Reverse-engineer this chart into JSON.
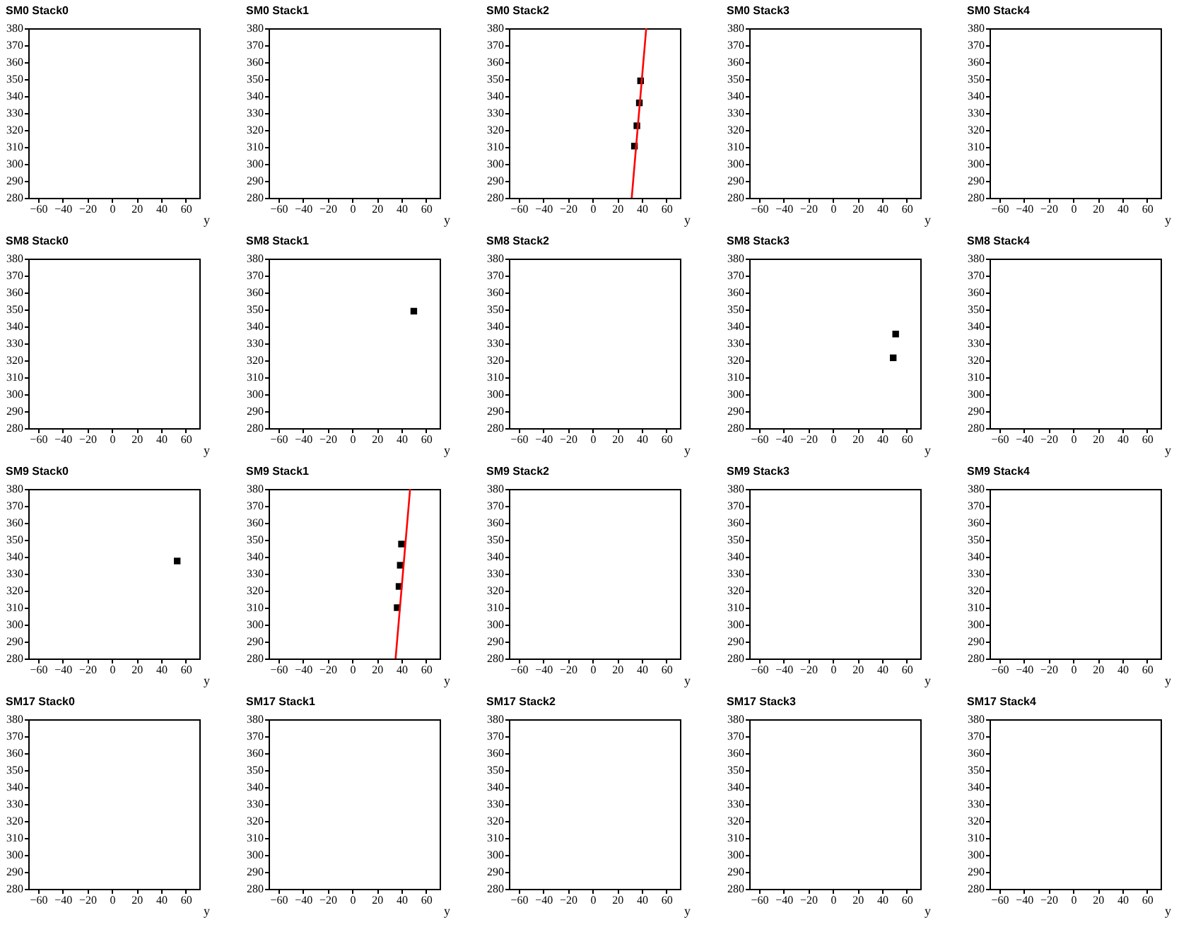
{
  "chart_data": [
    {
      "type": "scatter",
      "title": "SM0 Stack0",
      "xlabel": "y",
      "xlim": [
        -68,
        71
      ],
      "xticks": [
        -60,
        -40,
        -20,
        0,
        20,
        40,
        60
      ],
      "ylim": [
        280,
        380
      ],
      "yticks": [
        280,
        290,
        300,
        310,
        320,
        330,
        340,
        350,
        360,
        370,
        380
      ]
    },
    {
      "type": "scatter",
      "title": "SM0 Stack1",
      "xlabel": "y",
      "xlim": [
        -68,
        71
      ],
      "xticks": [
        -60,
        -40,
        -20,
        0,
        20,
        40,
        60
      ],
      "ylim": [
        280,
        380
      ],
      "yticks": [
        280,
        290,
        300,
        310,
        320,
        330,
        340,
        350,
        360,
        370,
        380
      ]
    },
    {
      "type": "scatter",
      "title": "SM0 Stack2",
      "xlabel": "y",
      "xlim": [
        -68,
        71
      ],
      "xticks": [
        -60,
        -40,
        -20,
        0,
        20,
        40,
        60
      ],
      "ylim": [
        280,
        380
      ],
      "yticks": [
        280,
        290,
        300,
        310,
        320,
        330,
        340,
        350,
        360,
        370,
        380
      ],
      "series": [
        {
          "color": "#000000",
          "marker": "square",
          "x": [
            39,
            38,
            36,
            34
          ],
          "values": [
            349,
            336,
            322.5,
            310.5
          ]
        },
        {
          "type": "line",
          "color": "#ff0000",
          "x": [
            31.8,
            43.6
          ],
          "values": [
            280,
            380
          ]
        }
      ]
    },
    {
      "type": "scatter",
      "title": "SM0 Stack3",
      "xlabel": "y",
      "xlim": [
        -68,
        71
      ],
      "xticks": [
        -60,
        -40,
        -20,
        0,
        20,
        40,
        60
      ],
      "ylim": [
        280,
        380
      ],
      "yticks": [
        280,
        290,
        300,
        310,
        320,
        330,
        340,
        350,
        360,
        370,
        380
      ]
    },
    {
      "type": "scatter",
      "title": "SM0 Stack4",
      "xlabel": "y",
      "xlim": [
        -68,
        71
      ],
      "xticks": [
        -60,
        -40,
        -20,
        0,
        20,
        40,
        60
      ],
      "ylim": [
        280,
        380
      ],
      "yticks": [
        280,
        290,
        300,
        310,
        320,
        330,
        340,
        350,
        360,
        370,
        380
      ]
    },
    {
      "type": "scatter",
      "title": "SM8 Stack0",
      "xlabel": "y",
      "xlim": [
        -68,
        71
      ],
      "xticks": [
        -60,
        -40,
        -20,
        0,
        20,
        40,
        60
      ],
      "ylim": [
        280,
        380
      ],
      "yticks": [
        280,
        290,
        300,
        310,
        320,
        330,
        340,
        350,
        360,
        370,
        380
      ]
    },
    {
      "type": "scatter",
      "title": "SM8 Stack1",
      "xlabel": "y",
      "xlim": [
        -68,
        71
      ],
      "xticks": [
        -60,
        -40,
        -20,
        0,
        20,
        40,
        60
      ],
      "ylim": [
        280,
        380
      ],
      "yticks": [
        280,
        290,
        300,
        310,
        320,
        330,
        340,
        350,
        360,
        370,
        380
      ],
      "series": [
        {
          "color": "#000000",
          "marker": "square",
          "x": [
            50
          ],
          "values": [
            349
          ]
        }
      ]
    },
    {
      "type": "scatter",
      "title": "SM8 Stack2",
      "xlabel": "y",
      "xlim": [
        -68,
        71
      ],
      "xticks": [
        -60,
        -40,
        -20,
        0,
        20,
        40,
        60
      ],
      "ylim": [
        280,
        380
      ],
      "yticks": [
        280,
        290,
        300,
        310,
        320,
        330,
        340,
        350,
        360,
        370,
        380
      ]
    },
    {
      "type": "scatter",
      "title": "SM8 Stack3",
      "xlabel": "y",
      "xlim": [
        -68,
        71
      ],
      "xticks": [
        -60,
        -40,
        -20,
        0,
        20,
        40,
        60
      ],
      "ylim": [
        280,
        380
      ],
      "yticks": [
        280,
        290,
        300,
        310,
        320,
        330,
        340,
        350,
        360,
        370,
        380
      ],
      "series": [
        {
          "color": "#000000",
          "marker": "square",
          "x": [
            51,
            49
          ],
          "values": [
            335.5,
            321.5
          ]
        }
      ]
    },
    {
      "type": "scatter",
      "title": "SM8 Stack4",
      "xlabel": "y",
      "xlim": [
        -68,
        71
      ],
      "xticks": [
        -60,
        -40,
        -20,
        0,
        20,
        40,
        60
      ],
      "ylim": [
        280,
        380
      ],
      "yticks": [
        280,
        290,
        300,
        310,
        320,
        330,
        340,
        350,
        360,
        370,
        380
      ]
    },
    {
      "type": "scatter",
      "title": "SM9 Stack0",
      "xlabel": "y",
      "xlim": [
        -68,
        71
      ],
      "xticks": [
        -60,
        -40,
        -20,
        0,
        20,
        40,
        60
      ],
      "ylim": [
        280,
        380
      ],
      "yticks": [
        280,
        290,
        300,
        310,
        320,
        330,
        340,
        350,
        360,
        370,
        380
      ],
      "series": [
        {
          "color": "#000000",
          "marker": "square",
          "x": [
            53
          ],
          "values": [
            337.5
          ]
        }
      ]
    },
    {
      "type": "scatter",
      "title": "SM9 Stack1",
      "xlabel": "y",
      "xlim": [
        -68,
        71
      ],
      "xticks": [
        -60,
        -40,
        -20,
        0,
        20,
        40,
        60
      ],
      "ylim": [
        280,
        380
      ],
      "yticks": [
        280,
        290,
        300,
        310,
        320,
        330,
        340,
        350,
        360,
        370,
        380
      ],
      "series": [
        {
          "color": "#000000",
          "marker": "square",
          "x": [
            40,
            39,
            38,
            36.5
          ],
          "values": [
            347.5,
            335,
            322.5,
            310
          ]
        },
        {
          "type": "line",
          "color": "#ff0000",
          "x": [
            35.2,
            47
          ],
          "values": [
            280,
            380
          ]
        }
      ]
    },
    {
      "type": "scatter",
      "title": "SM9 Stack2",
      "xlabel": "y",
      "xlim": [
        -68,
        71
      ],
      "xticks": [
        -60,
        -40,
        -20,
        0,
        20,
        40,
        60
      ],
      "ylim": [
        280,
        380
      ],
      "yticks": [
        280,
        290,
        300,
        310,
        320,
        330,
        340,
        350,
        360,
        370,
        380
      ]
    },
    {
      "type": "scatter",
      "title": "SM9 Stack3",
      "xlabel": "y",
      "xlim": [
        -68,
        71
      ],
      "xticks": [
        -60,
        -40,
        -20,
        0,
        20,
        40,
        60
      ],
      "ylim": [
        280,
        380
      ],
      "yticks": [
        280,
        290,
        300,
        310,
        320,
        330,
        340,
        350,
        360,
        370,
        380
      ]
    },
    {
      "type": "scatter",
      "title": "SM9 Stack4",
      "xlabel": "y",
      "xlim": [
        -68,
        71
      ],
      "xticks": [
        -60,
        -40,
        -20,
        0,
        20,
        40,
        60
      ],
      "ylim": [
        280,
        380
      ],
      "yticks": [
        280,
        290,
        300,
        310,
        320,
        330,
        340,
        350,
        360,
        370,
        380
      ]
    },
    {
      "type": "scatter",
      "title": "SM17 Stack0",
      "xlabel": "y",
      "xlim": [
        -68,
        71
      ],
      "xticks": [
        -60,
        -40,
        -20,
        0,
        20,
        40,
        60
      ],
      "ylim": [
        280,
        380
      ],
      "yticks": [
        280,
        290,
        300,
        310,
        320,
        330,
        340,
        350,
        360,
        370,
        380
      ]
    },
    {
      "type": "scatter",
      "title": "SM17 Stack1",
      "xlabel": "y",
      "xlim": [
        -68,
        71
      ],
      "xticks": [
        -60,
        -40,
        -20,
        0,
        20,
        40,
        60
      ],
      "ylim": [
        280,
        380
      ],
      "yticks": [
        280,
        290,
        300,
        310,
        320,
        330,
        340,
        350,
        360,
        370,
        380
      ]
    },
    {
      "type": "scatter",
      "title": "SM17 Stack2",
      "xlabel": "y",
      "xlim": [
        -68,
        71
      ],
      "xticks": [
        -60,
        -40,
        -20,
        0,
        20,
        40,
        60
      ],
      "ylim": [
        280,
        380
      ],
      "yticks": [
        280,
        290,
        300,
        310,
        320,
        330,
        340,
        350,
        360,
        370,
        380
      ]
    },
    {
      "type": "scatter",
      "title": "SM17 Stack3",
      "xlabel": "y",
      "xlim": [
        -68,
        71
      ],
      "xticks": [
        -60,
        -40,
        -20,
        0,
        20,
        40,
        60
      ],
      "ylim": [
        280,
        380
      ],
      "yticks": [
        280,
        290,
        300,
        310,
        320,
        330,
        340,
        350,
        360,
        370,
        380
      ]
    },
    {
      "type": "scatter",
      "title": "SM17 Stack4",
      "xlabel": "y",
      "xlim": [
        -68,
        71
      ],
      "xticks": [
        -60,
        -40,
        -20,
        0,
        20,
        40,
        60
      ],
      "ylim": [
        280,
        380
      ],
      "yticks": [
        280,
        290,
        300,
        310,
        320,
        330,
        340,
        350,
        360,
        370,
        380
      ]
    }
  ]
}
